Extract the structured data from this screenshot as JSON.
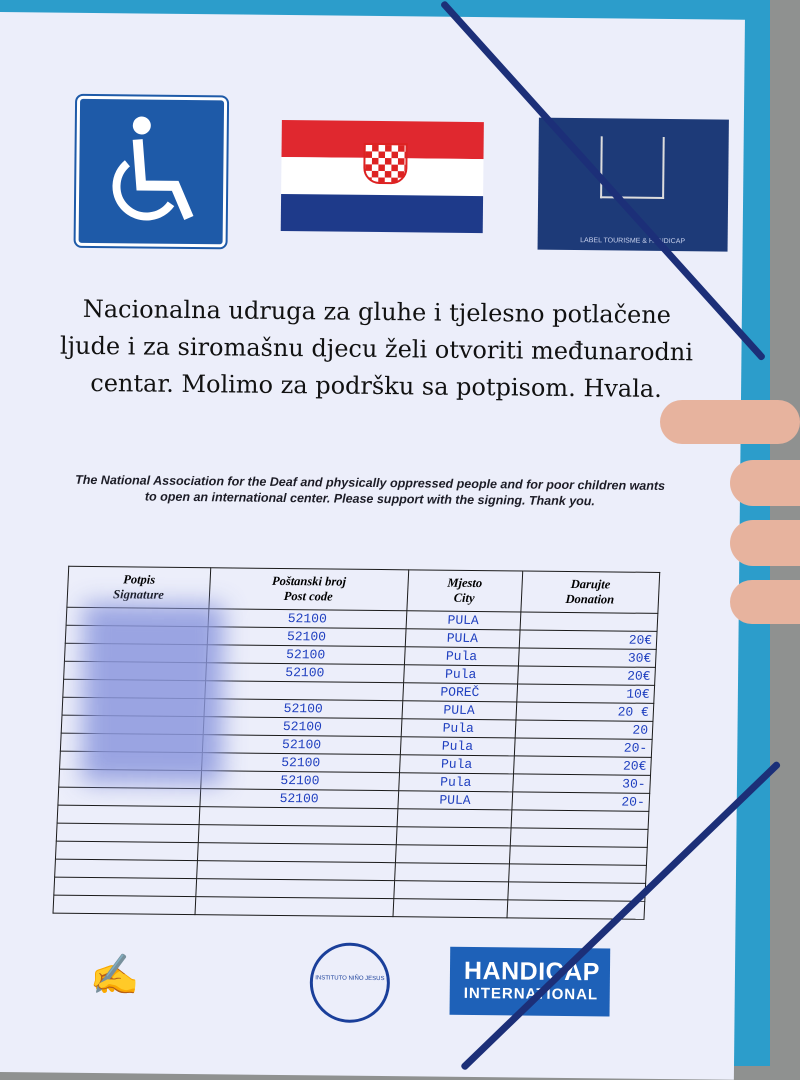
{
  "header": {
    "logo_wheelchair": "wheelchair-icon",
    "flag": "croatian-flag",
    "logo_right_caption": "LABEL TOURISME & HANDICAP"
  },
  "title_hr": "Nacionalna udruga za gluhe i tjelesno potlačene ljude i za siromašnu djecu želi otvoriti međunarodni centar. Molimo za podršku sa potpisom.     Hvala.",
  "title_en": "The National Association for the Deaf and physically oppressed people and for poor children wants to open an international center. Please support with the signing. Thank you.",
  "table": {
    "headers": [
      {
        "hr": "Potpis",
        "en": "Signature"
      },
      {
        "hr": "Poštanski broj",
        "en": "Post code"
      },
      {
        "hr": "Mjesto",
        "en": "City"
      },
      {
        "hr": "Darujte",
        "en": "Donation"
      }
    ],
    "rows": [
      {
        "sig": "",
        "post": "52100",
        "city": "PULA",
        "don": ""
      },
      {
        "sig": "",
        "post": "52100",
        "city": "PULA",
        "don": "20€"
      },
      {
        "sig": "",
        "post": "52100",
        "city": "Pula",
        "don": "30€"
      },
      {
        "sig": "",
        "post": "52100",
        "city": "Pula",
        "don": "20€"
      },
      {
        "sig": "",
        "post": "",
        "city": "POREČ",
        "don": "10€"
      },
      {
        "sig": "",
        "post": "52100",
        "city": "PULA",
        "don": "20 €"
      },
      {
        "sig": "",
        "post": "52100",
        "city": "Pula",
        "don": "20"
      },
      {
        "sig": "",
        "post": "52100",
        "city": "Pula",
        "don": "20-"
      },
      {
        "sig": "",
        "post": "52100",
        "city": "Pula",
        "don": "20€"
      },
      {
        "sig": "",
        "post": "52100",
        "city": "Pula",
        "don": "30-"
      },
      {
        "sig": "",
        "post": "52100",
        "city": "PULA",
        "don": "20-"
      },
      {
        "sig": "",
        "post": "",
        "city": "",
        "don": ""
      },
      {
        "sig": "",
        "post": "",
        "city": "",
        "don": ""
      },
      {
        "sig": "",
        "post": "",
        "city": "",
        "don": ""
      },
      {
        "sig": "",
        "post": "",
        "city": "",
        "don": ""
      },
      {
        "sig": "",
        "post": "",
        "city": "",
        "don": ""
      },
      {
        "sig": "",
        "post": "",
        "city": "",
        "don": ""
      }
    ]
  },
  "footer": {
    "stamp_text": "INSTITUTO NIÑO JESUS",
    "handicap_line1": "HANDICAP",
    "handicap_line2": "INTERNATIONAL"
  },
  "colors": {
    "ink": "#1f3fbf",
    "folder": "#2c9dcb",
    "band": "#1c2f78"
  }
}
